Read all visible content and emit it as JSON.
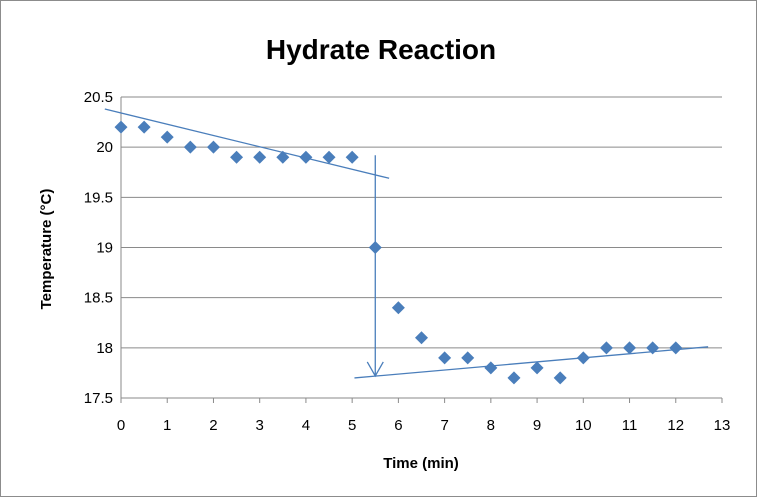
{
  "chart_data": {
    "type": "scatter",
    "title": "Hydrate Reaction",
    "xlabel": "Time (min)",
    "ylabel": "Temperature (°C)",
    "xlim": [
      0,
      13
    ],
    "ylim": [
      17.5,
      20.5
    ],
    "x_ticks": [
      "0",
      "1",
      "2",
      "3",
      "4",
      "5",
      "6",
      "7",
      "8",
      "9",
      "10",
      "11",
      "12",
      "13"
    ],
    "y_ticks": [
      "17.5",
      "18",
      "18.5",
      "19",
      "19.5",
      "20",
      "20.5"
    ],
    "grid": true,
    "legend": "none",
    "marker_color": "#4a7ebb",
    "series": [
      {
        "marker": "diamond",
        "x": [
          0,
          0.5,
          1,
          1.5,
          2,
          2.5,
          3,
          3.5,
          4,
          4.5,
          5,
          5.5,
          6,
          6.5,
          7,
          7.5,
          8,
          8.5,
          9,
          9.5,
          10,
          10.5,
          11,
          11.5,
          12
        ],
        "y": [
          20.2,
          20.2,
          20.1,
          20.0,
          20.0,
          19.9,
          19.9,
          19.9,
          19.9,
          19.9,
          19.9,
          19.0,
          18.4,
          18.1,
          17.9,
          17.9,
          17.8,
          17.7,
          17.8,
          17.7,
          17.9,
          18.0,
          18.0,
          18.0,
          18.0
        ]
      }
    ],
    "trendlines": [
      {
        "x": [
          -0.35,
          5.8
        ],
        "y": [
          20.38,
          19.69
        ]
      },
      {
        "x": [
          5.05,
          12.7
        ],
        "y": [
          17.7,
          18.01
        ]
      }
    ],
    "annotations": [
      {
        "type": "arrow",
        "x": [
          5.5,
          5.5
        ],
        "y": [
          19.92,
          17.72
        ]
      }
    ]
  }
}
